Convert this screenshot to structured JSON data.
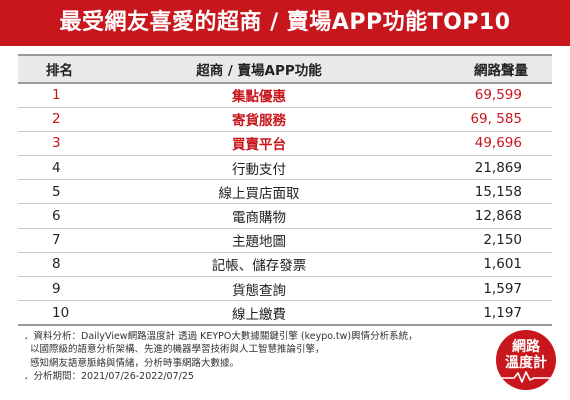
{
  "title": "最受網友喜愛的超商 / 賣場APP功能TOP10",
  "table": {
    "headers": {
      "rank": "排名",
      "name": "超商 / 賣場APP功能",
      "volume": "網路聲量"
    },
    "rows": [
      {
        "rank": "1",
        "name": "集點優惠",
        "volume": "69,599"
      },
      {
        "rank": "2",
        "name": "寄貨服務",
        "volume": "69, 585"
      },
      {
        "rank": "3",
        "name": "買賣平台",
        "volume": "49,696"
      },
      {
        "rank": "4",
        "name": "行動支付",
        "volume": "21,869"
      },
      {
        "rank": "5",
        "name": "線上買店面取",
        "volume": "15,158"
      },
      {
        "rank": "6",
        "name": "電商購物",
        "volume": "12,868"
      },
      {
        "rank": "7",
        "name": "主題地圖",
        "volume": "2,150"
      },
      {
        "rank": "8",
        "name": "記帳、儲存發票",
        "volume": "1,601"
      },
      {
        "rank": "9",
        "name": "貨態查詢",
        "volume": "1,597"
      },
      {
        "rank": "10",
        "name": "線上繳費",
        "volume": "1,197"
      }
    ]
  },
  "footer": {
    "line1": "．資料分析：DailyView網路溫度計 透過 KEYPO大數據關鍵引擎 (keypo.tw)輿情分析系統，",
    "line2": "以國際級的語意分析架構、先進的機器學習技術與人工智慧推論引擎，",
    "line3": "感知網友語意脈絡與情緒，分析時事網路大數據。",
    "line4": "．分析期間：2021/07/26-2022/07/25"
  },
  "logo": {
    "line1": "網路",
    "line2": "溫度計"
  },
  "colors": {
    "accent": "#c8161d",
    "header_bg": "#e9e9e9"
  }
}
